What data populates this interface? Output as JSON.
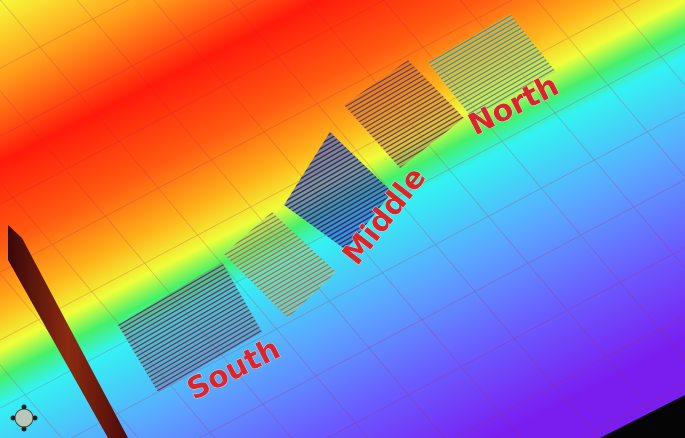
{
  "labels": {
    "south": "South",
    "middle": "Middle",
    "north": "North"
  }
}
